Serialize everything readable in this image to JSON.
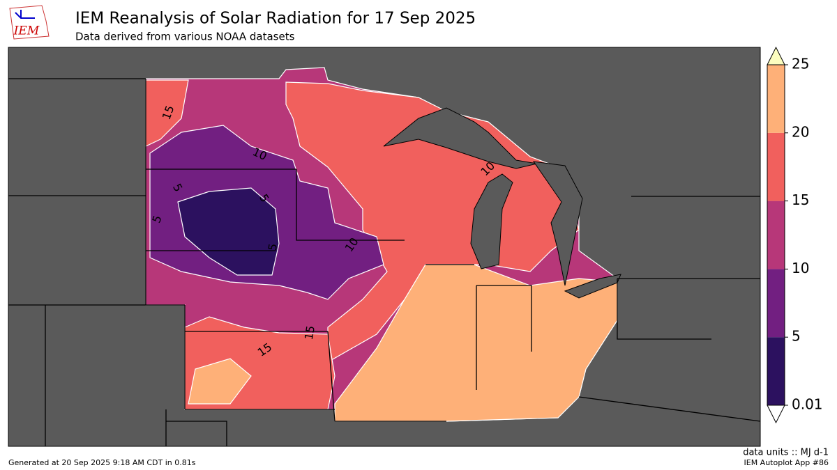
{
  "header": {
    "logo": "IEM",
    "title": "IEM Reanalysis of Solar Radiation for 17 Sep 2025",
    "subtitle": "Data derived from various NOAA datasets"
  },
  "colorbar": {
    "ticks": [
      0.01,
      5,
      10,
      15,
      20,
      25
    ],
    "colors": [
      "#2c115f",
      "#721f81",
      "#b73779",
      "#f1605d",
      "#feb078"
    ],
    "over_color": "#fcfdbf",
    "under_color": "#ffffff"
  },
  "contour_labels": [
    15,
    10,
    5,
    5,
    5,
    5,
    10,
    15,
    15,
    10
  ],
  "footer": {
    "generated": "Generated at 20 Sep 2025 9:18 AM CDT in 0.81s",
    "units": "data units :: MJ d-1",
    "app": "IEM Autoplot App #86"
  }
}
